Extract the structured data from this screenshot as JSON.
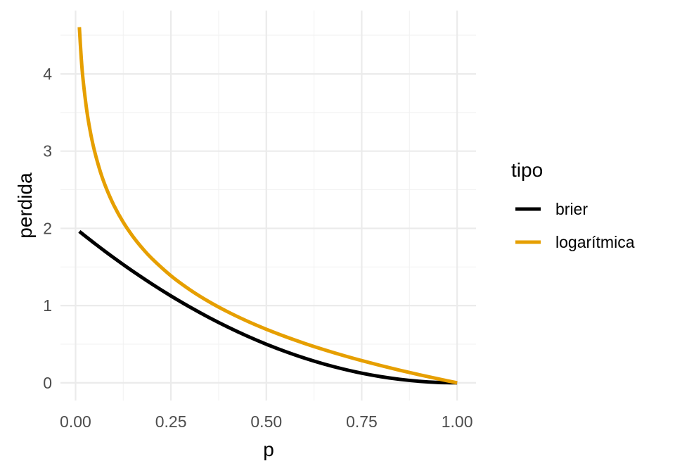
{
  "chart_data": {
    "type": "line",
    "xlabel": "p",
    "ylabel": "perdida",
    "xlim": [
      -0.0395,
      1.0495
    ],
    "ylim": [
      -0.229,
      4.82
    ],
    "x_ticks": [
      0,
      0.25,
      0.5,
      0.75,
      1
    ],
    "x_tick_labels": [
      "0.00",
      "0.25",
      "0.50",
      "0.75",
      "1.00"
    ],
    "x_minor_ticks": [
      0.125,
      0.375,
      0.625,
      0.875
    ],
    "y_ticks": [
      0,
      1,
      2,
      3,
      4
    ],
    "y_tick_labels": [
      "0",
      "1",
      "2",
      "3",
      "4"
    ],
    "y_minor_ticks": [
      0.5,
      1.5,
      2.5,
      3.5,
      4.5
    ],
    "grid": true,
    "legend": {
      "title": "tipo",
      "placement": "right"
    },
    "series": [
      {
        "name": "brier",
        "color": "#000000",
        "x": [
          0.01,
          0.02,
          0.03,
          0.05,
          0.075,
          0.1,
          0.125,
          0.15,
          0.2,
          0.25,
          0.3,
          0.35,
          0.4,
          0.45,
          0.5,
          0.55,
          0.6,
          0.65,
          0.7,
          0.75,
          0.8,
          0.85,
          0.9,
          0.95,
          1.0
        ],
        "y": [
          1.9602,
          1.9208,
          1.8818,
          1.805,
          1.7113,
          1.62,
          1.5313,
          1.445,
          1.28,
          1.125,
          0.98,
          0.845,
          0.72,
          0.605,
          0.5,
          0.405,
          0.32,
          0.245,
          0.18,
          0.125,
          0.08,
          0.045,
          0.02,
          0.005,
          0.0
        ]
      },
      {
        "name": "logarítmica",
        "color": "#E69F00",
        "x": [
          0.01,
          0.015,
          0.02,
          0.03,
          0.04,
          0.05,
          0.065,
          0.08,
          0.1,
          0.125,
          0.15,
          0.175,
          0.2,
          0.25,
          0.3,
          0.35,
          0.4,
          0.45,
          0.5,
          0.55,
          0.6,
          0.65,
          0.7,
          0.75,
          0.8,
          0.85,
          0.9,
          0.95,
          1.0
        ],
        "y": [
          4.6052,
          4.1997,
          3.912,
          3.5066,
          3.2189,
          2.9957,
          2.7334,
          2.5257,
          2.3026,
          2.0794,
          1.8971,
          1.743,
          1.6094,
          1.3863,
          1.204,
          1.0498,
          0.9163,
          0.7985,
          0.6931,
          0.5978,
          0.5108,
          0.4308,
          0.3567,
          0.2877,
          0.2231,
          0.1625,
          0.1054,
          0.0513,
          0.0
        ]
      }
    ]
  }
}
